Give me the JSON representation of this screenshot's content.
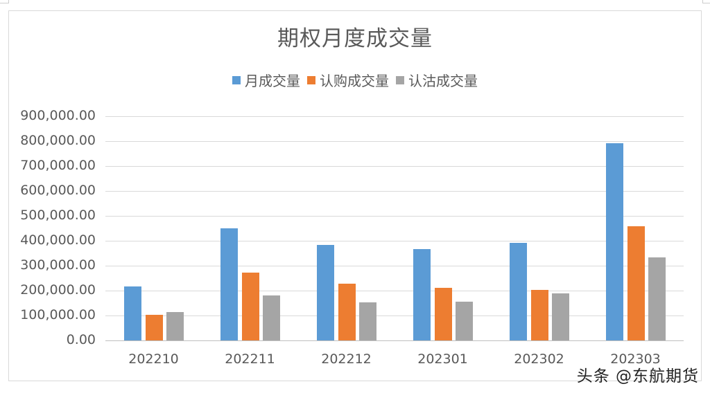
{
  "chart_data": {
    "type": "bar",
    "title": "期权月度成交量",
    "xlabel": "",
    "ylabel": "",
    "categories": [
      "202210",
      "202211",
      "202212",
      "202301",
      "202302",
      "202303"
    ],
    "series": [
      {
        "name": "月成交量",
        "color": "#5b9bd5",
        "values": [
          216000,
          450000,
          383000,
          367000,
          392000,
          792000
        ]
      },
      {
        "name": "认购成交量",
        "color": "#ed7d31",
        "values": [
          103000,
          272000,
          228000,
          211000,
          203000,
          458000
        ]
      },
      {
        "name": "认沽成交量",
        "color": "#a5a5a5",
        "values": [
          114000,
          181000,
          153000,
          156000,
          189000,
          333000
        ]
      }
    ],
    "ylim": [
      0,
      900000
    ],
    "yticks": [
      "0.00",
      "100,000.00",
      "200,000.00",
      "300,000.00",
      "400,000.00",
      "500,000.00",
      "600,000.00",
      "700,000.00",
      "800,000.00",
      "900,000.00"
    ],
    "grid": true,
    "legend_position": "top"
  },
  "watermark": "头条 @东航期货"
}
